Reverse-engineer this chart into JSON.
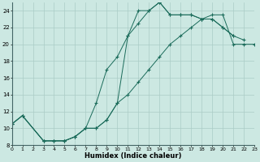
{
  "xlabel": "Humidex (Indice chaleur)",
  "bg_color": "#cce8e2",
  "line_color": "#1a6b5a",
  "grid_color": "#aaccc6",
  "xlim": [
    0,
    23
  ],
  "ylim": [
    8,
    25
  ],
  "xtick_vals": [
    0,
    1,
    2,
    3,
    4,
    5,
    6,
    7,
    8,
    9,
    10,
    11,
    12,
    13,
    14,
    15,
    16,
    17,
    18,
    19,
    20,
    21,
    22,
    23
  ],
  "ytick_vals": [
    8,
    10,
    12,
    14,
    16,
    18,
    20,
    22,
    24
  ],
  "curve1_x": [
    0,
    1,
    3,
    4,
    5,
    6,
    7,
    8,
    9,
    10,
    11,
    12,
    13,
    14,
    15,
    16,
    17,
    18,
    19,
    20,
    21,
    22
  ],
  "curve1_y": [
    10.5,
    11.5,
    8.5,
    8.5,
    8.5,
    9.0,
    10.0,
    10.0,
    11.0,
    13.0,
    21.0,
    24.0,
    24.0,
    25.0,
    23.5,
    23.5,
    23.5,
    23.0,
    23.0,
    22.0,
    21.0,
    20.5
  ],
  "curve2_x": [
    0,
    1,
    3,
    4,
    5,
    6,
    7,
    8,
    9,
    10,
    11,
    12,
    13,
    14,
    15,
    16,
    17,
    18,
    19,
    20,
    21
  ],
  "curve2_y": [
    10.5,
    11.5,
    8.5,
    8.5,
    8.5,
    9.0,
    10.0,
    13.0,
    17.0,
    18.5,
    21.0,
    22.5,
    24.0,
    25.0,
    23.5,
    23.5,
    23.5,
    23.0,
    23.0,
    22.0,
    21.0
  ],
  "curve3_x": [
    0,
    1,
    3,
    4,
    5,
    6,
    7,
    8,
    9,
    10,
    11,
    12,
    13,
    14,
    15,
    16,
    17,
    18,
    19,
    20,
    21,
    22,
    23
  ],
  "curve3_y": [
    10.5,
    11.5,
    8.5,
    8.5,
    8.5,
    9.0,
    10.0,
    10.0,
    11.0,
    13.0,
    14.0,
    15.5,
    17.0,
    18.5,
    20.0,
    21.0,
    22.0,
    23.0,
    23.5,
    23.5,
    20.0,
    20.0,
    20.0
  ]
}
